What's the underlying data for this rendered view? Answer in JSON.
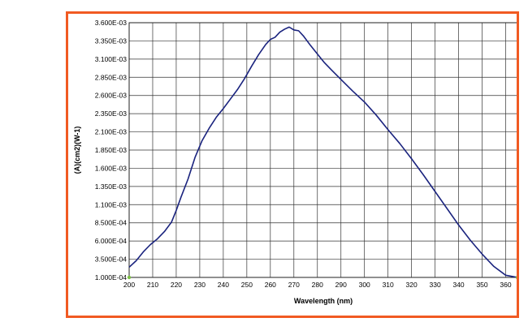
{
  "chart_data": {
    "type": "line",
    "title": "",
    "xlabel": "Wavelength (nm)",
    "ylabel": "(A)(cm2)(W-1)",
    "xlim": [
      200,
      365
    ],
    "ylim": [
      0.0001,
      0.0036
    ],
    "grid": true,
    "x_ticks": [
      "200",
      "210",
      "220",
      "230",
      "240",
      "250",
      "260",
      "270",
      "280",
      "290",
      "300",
      "310",
      "320",
      "330",
      "340",
      "350",
      "360"
    ],
    "y_ticks": [
      "1.000E-04",
      "3.500E-04",
      "6.000E-04",
      "8.500E-04",
      "1.100E-03",
      "1.350E-03",
      "1.600E-03",
      "1.850E-03",
      "2.100E-03",
      "2.350E-03",
      "2.600E-03",
      "2.850E-03",
      "3.100E-03",
      "3.350E-03",
      "3.600E-03"
    ],
    "series": [
      {
        "color": "#1a237e",
        "x": [
          200,
          203,
          206,
          209,
          212,
          215,
          218,
          220,
          222,
          225,
          228,
          231,
          234,
          237,
          240,
          243,
          246,
          249,
          252,
          255,
          258,
          260,
          262,
          264,
          266,
          268,
          270,
          272,
          274,
          277,
          280,
          283,
          286,
          290,
          295,
          300,
          305,
          310,
          315,
          320,
          325,
          330,
          335,
          340,
          345,
          350,
          355,
          360,
          365
        ],
        "y": [
          0.00024,
          0.00033,
          0.00045,
          0.00055,
          0.00063,
          0.00073,
          0.00086,
          0.00102,
          0.0012,
          0.00145,
          0.00175,
          0.00198,
          0.00215,
          0.0023,
          0.00242,
          0.00255,
          0.00268,
          0.00283,
          0.003,
          0.00316,
          0.0033,
          0.00337,
          0.0034,
          0.00347,
          0.00351,
          0.00354,
          0.0035,
          0.00349,
          0.00342,
          0.00329,
          0.00317,
          0.00305,
          0.00295,
          0.00282,
          0.00266,
          0.00251,
          0.00233,
          0.00213,
          0.00194,
          0.00173,
          0.00151,
          0.00128,
          0.00105,
          0.00082,
          0.00061,
          0.00042,
          0.00025,
          0.00013,
          0.0001
        ]
      }
    ],
    "end_markers": [
      [
        200,
        0.0001
      ],
      [
        365,
        0.0001
      ]
    ],
    "marker_color": "#7bc043"
  }
}
